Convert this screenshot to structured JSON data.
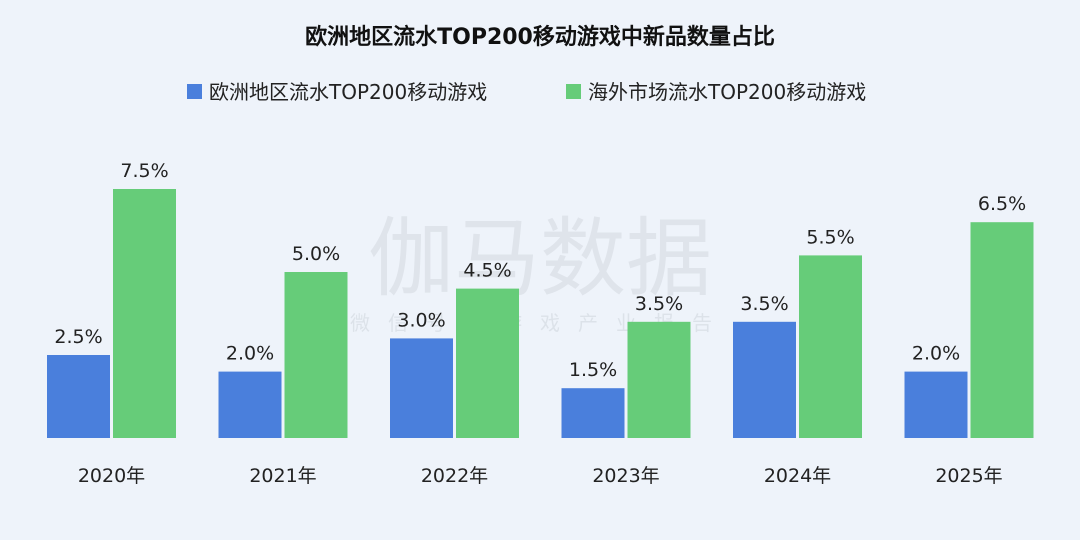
{
  "chart_data": {
    "type": "bar",
    "title": "欧洲地区流水TOP200移动游戏中新品数量占比",
    "categories": [
      "2020年",
      "2021年",
      "2022年",
      "2023年",
      "2024年",
      "2025年"
    ],
    "series": [
      {
        "name": "欧洲地区流水TOP200移动游戏",
        "color": "#4a7fdc",
        "values": [
          2.5,
          2.0,
          3.0,
          1.5,
          3.5,
          2.0
        ],
        "labels": [
          "2.5%",
          "2.0%",
          "3.0%",
          "1.5%",
          "3.5%",
          "2.0%"
        ]
      },
      {
        "name": "海外市场流水TOP200移动游戏",
        "color": "#66cc79",
        "values": [
          7.5,
          5.0,
          4.5,
          3.5,
          5.5,
          6.5
        ],
        "labels": [
          "7.5%",
          "5.0%",
          "4.5%",
          "3.5%",
          "5.5%",
          "6.5%"
        ]
      }
    ],
    "ylim": [
      0,
      8.5
    ],
    "legend_position": "top",
    "grid": false,
    "xlabel": "",
    "ylabel": ""
  },
  "watermark": {
    "main": "伽马数据",
    "sub": "微信号：游戏产业报告"
  }
}
